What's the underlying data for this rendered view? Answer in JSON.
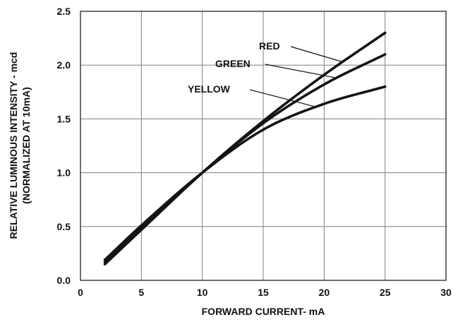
{
  "chart_data": {
    "type": "line",
    "title": "",
    "xlabel": "FORWARD CURRENT- mA",
    "ylabel_line1": "RELATIVE LUMINOUS INTENSITY - mcd",
    "ylabel_line2": "(NORMALIZED AT 10mA)",
    "xlim": [
      0,
      30
    ],
    "ylim": [
      0,
      2.5
    ],
    "xticks": [
      "0",
      "5",
      "10",
      "15",
      "20",
      "25",
      "30"
    ],
    "yticks": [
      "0.0",
      "0.5",
      "1.0",
      "1.5",
      "2.0",
      "2.5"
    ],
    "grid": true,
    "series": [
      {
        "name": "RED",
        "x": [
          2,
          5,
          10,
          15,
          20,
          25
        ],
        "y": [
          0.15,
          0.47,
          1.0,
          1.48,
          1.91,
          2.3
        ]
      },
      {
        "name": "GREEN",
        "x": [
          2,
          5,
          10,
          15,
          20,
          25
        ],
        "y": [
          0.17,
          0.49,
          1.0,
          1.46,
          1.82,
          2.1
        ]
      },
      {
        "name": "YELLOW",
        "x": [
          2,
          5,
          10,
          15,
          20,
          25
        ],
        "y": [
          0.19,
          0.51,
          1.0,
          1.4,
          1.64,
          1.8
        ]
      }
    ]
  }
}
